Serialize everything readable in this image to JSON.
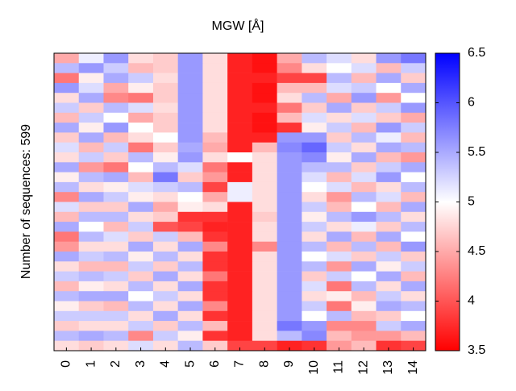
{
  "chart_data": {
    "type": "heatmap",
    "title": "MGW [Å]",
    "ylabel": "Number of sequences: 599",
    "x": [
      0,
      1,
      2,
      3,
      4,
      5,
      6,
      7,
      8,
      9,
      10,
      11,
      12,
      13,
      14
    ],
    "colormap": "bwr_r",
    "zlim": [
      3.5,
      6.5
    ],
    "zticks": [
      3.5,
      4,
      4.5,
      5,
      5.5,
      6,
      6.5
    ],
    "z": [
      [
        4.5,
        5.1,
        5.6,
        4.8,
        4.7,
        5.6,
        4.8,
        3.7,
        3.6,
        4.5,
        5.4,
        5.2,
        4.8,
        5.6,
        5.8
      ],
      [
        5.4,
        5.6,
        5.3,
        4.6,
        4.7,
        5.6,
        4.8,
        3.7,
        3.6,
        4.3,
        4.8,
        5.0,
        5.2,
        4.6,
        5.3
      ],
      [
        4.2,
        4.9,
        5.5,
        5.3,
        4.8,
        5.6,
        4.8,
        3.7,
        3.7,
        3.9,
        3.9,
        5.4,
        4.6,
        5.5,
        4.7
      ],
      [
        5.6,
        5.2,
        4.5,
        4.9,
        4.7,
        5.6,
        4.8,
        3.7,
        3.6,
        4.6,
        4.6,
        5.2,
        5.3,
        5.0,
        5.5
      ],
      [
        4.8,
        5.5,
        4.3,
        4.2,
        4.7,
        5.6,
        4.8,
        3.7,
        3.6,
        4.8,
        5.4,
        4.5,
        5.6,
        4.4,
        5.0
      ],
      [
        5.3,
        4.7,
        5.4,
        5.2,
        4.8,
        5.6,
        4.8,
        3.7,
        3.7,
        4.2,
        4.7,
        5.5,
        4.7,
        5.3,
        5.6
      ],
      [
        4.6,
        5.3,
        5.0,
        4.5,
        4.7,
        5.6,
        4.8,
        3.7,
        3.6,
        4.6,
        5.2,
        4.8,
        5.2,
        4.7,
        4.5
      ],
      [
        5.5,
        4.9,
        5.6,
        5.0,
        4.7,
        5.6,
        4.8,
        3.7,
        3.6,
        3.8,
        4.9,
        5.3,
        4.6,
        5.6,
        5.3
      ],
      [
        4.7,
        5.5,
        4.6,
        4.8,
        5.0,
        5.6,
        4.6,
        3.7,
        3.7,
        5.6,
        5.6,
        4.7,
        5.4,
        5.1,
        4.6
      ],
      [
        5.2,
        4.6,
        5.3,
        4.2,
        4.7,
        5.5,
        4.5,
        3.7,
        4.6,
        5.7,
        5.9,
        5.3,
        4.8,
        5.5,
        5.4
      ],
      [
        4.8,
        5.3,
        4.7,
        5.4,
        4.9,
        5.6,
        4.8,
        5.0,
        4.8,
        5.6,
        5.7,
        4.9,
        5.5,
        4.6,
        4.4
      ],
      [
        5.5,
        4.4,
        4.2,
        5.0,
        5.4,
        5.2,
        4.2,
        3.7,
        4.8,
        5.6,
        5.4,
        5.4,
        4.7,
        5.3,
        5.5
      ],
      [
        4.9,
        5.4,
        5.5,
        4.6,
        5.8,
        4.7,
        4.4,
        3.7,
        4.8,
        5.6,
        5.2,
        4.6,
        5.2,
        5.6,
        5.0
      ],
      [
        5.4,
        4.8,
        4.9,
        5.2,
        5.3,
        5.4,
        3.9,
        5.1,
        4.8,
        5.6,
        5.0,
        5.2,
        4.6,
        4.8,
        5.4
      ],
      [
        4.3,
        5.5,
        5.3,
        4.9,
        4.8,
        5.0,
        4.5,
        5.1,
        4.8,
        5.6,
        4.8,
        4.4,
        5.4,
        5.2,
        4.6
      ],
      [
        5.2,
        4.7,
        4.7,
        5.5,
        4.5,
        4.9,
        4.8,
        3.7,
        4.8,
        5.6,
        5.3,
        4.6,
        5.0,
        4.6,
        5.5
      ],
      [
        4.6,
        5.4,
        5.4,
        4.8,
        4.7,
        3.8,
        3.8,
        3.7,
        4.7,
        5.6,
        4.9,
        5.4,
        5.6,
        5.4,
        4.8
      ],
      [
        5.5,
        5.0,
        4.6,
        5.3,
        4.0,
        3.9,
        3.7,
        3.7,
        4.8,
        5.6,
        5.3,
        4.8,
        5.1,
        4.7,
        5.4
      ],
      [
        4.2,
        5.4,
        5.2,
        4.7,
        5.3,
        4.6,
        3.8,
        3.7,
        4.8,
        5.6,
        4.8,
        5.5,
        4.6,
        5.5,
        5.0
      ],
      [
        4.4,
        4.8,
        4.8,
        5.5,
        4.8,
        5.5,
        4.3,
        3.7,
        4.3,
        5.6,
        5.4,
        4.6,
        5.4,
        4.6,
        5.6
      ],
      [
        5.5,
        5.3,
        5.4,
        4.9,
        5.4,
        4.8,
        3.8,
        3.7,
        4.8,
        5.6,
        5.0,
        5.2,
        4.7,
        5.3,
        4.7
      ],
      [
        4.8,
        4.6,
        4.6,
        5.3,
        4.7,
        5.4,
        3.8,
        3.7,
        4.8,
        5.6,
        5.4,
        4.4,
        5.5,
        4.9,
        5.3
      ],
      [
        5.3,
        5.4,
        5.3,
        4.7,
        5.5,
        4.8,
        4.2,
        3.7,
        4.8,
        5.6,
        4.7,
        5.3,
        5.0,
        5.5,
        4.6
      ],
      [
        4.6,
        4.9,
        4.8,
        5.4,
        4.8,
        5.5,
        3.8,
        3.7,
        4.8,
        5.6,
        5.2,
        4.2,
        5.4,
        4.8,
        5.5
      ],
      [
        5.4,
        5.5,
        5.5,
        5.0,
        5.3,
        4.8,
        3.8,
        3.7,
        4.8,
        5.6,
        4.8,
        4.9,
        4.6,
        5.3,
        4.8
      ],
      [
        4.9,
        4.7,
        4.6,
        5.4,
        4.8,
        5.5,
        4.3,
        3.7,
        4.8,
        5.6,
        5.3,
        4.2,
        4.9,
        5.5,
        5.4
      ],
      [
        5.3,
        5.3,
        5.3,
        4.8,
        5.5,
        4.8,
        3.8,
        3.7,
        4.8,
        5.6,
        5.0,
        5.4,
        4.6,
        4.7,
        5.0
      ],
      [
        4.7,
        4.8,
        4.8,
        5.3,
        4.7,
        5.4,
        4.6,
        3.7,
        4.8,
        5.8,
        5.6,
        4.3,
        4.3,
        5.3,
        5.5
      ],
      [
        5.4,
        5.5,
        5.4,
        4.3,
        5.3,
        4.9,
        3.8,
        3.7,
        4.8,
        5.4,
        5.7,
        4.6,
        4.4,
        4.4,
        4.6
      ],
      [
        4.8,
        4.7,
        4.8,
        5.2,
        4.8,
        5.4,
        4.7,
        3.9,
        3.9,
        3.7,
        3.8,
        4.4,
        4.6,
        3.8,
        3.9
      ]
    ]
  }
}
